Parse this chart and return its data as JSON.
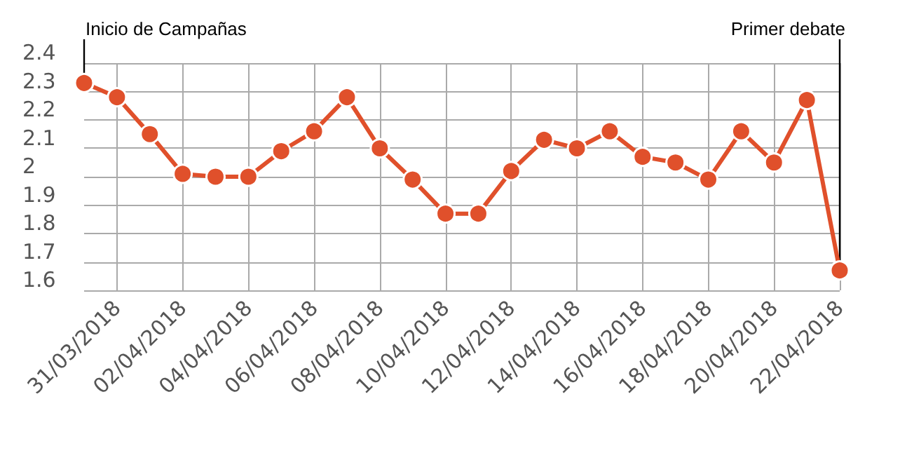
{
  "chart_data": {
    "type": "line",
    "categories": [
      null,
      "31/03/2018",
      null,
      "02/04/2018",
      null,
      "04/04/2018",
      null,
      "06/04/2018",
      null,
      "08/04/2018",
      null,
      "10/04/2018",
      null,
      "12/04/2018",
      null,
      "14/04/2018",
      null,
      "16/04/2018",
      null,
      "18/04/2018",
      null,
      "20/04/2018",
      null,
      "22/04/2018"
    ],
    "series": [
      {
        "color": "#e0502b",
        "values": [
          2.33,
          2.28,
          2.15,
          2.01,
          2.0,
          2.0,
          2.09,
          2.16,
          2.28,
          2.1,
          1.99,
          1.87,
          1.87,
          2.02,
          2.13,
          2.1,
          2.16,
          2.07,
          2.05,
          1.99,
          2.16,
          2.05,
          2.27,
          1.67
        ]
      }
    ],
    "ylim": [
      1.6,
      2.4
    ],
    "yticks": [
      1.6,
      1.7,
      1.8,
      1.9,
      2,
      2.1,
      2.2,
      2.3,
      2.4
    ],
    "grid": true,
    "marker": "circle",
    "line_style": "solid",
    "annotations": [
      "Inicio de Campañas",
      "Primer debate"
    ]
  }
}
